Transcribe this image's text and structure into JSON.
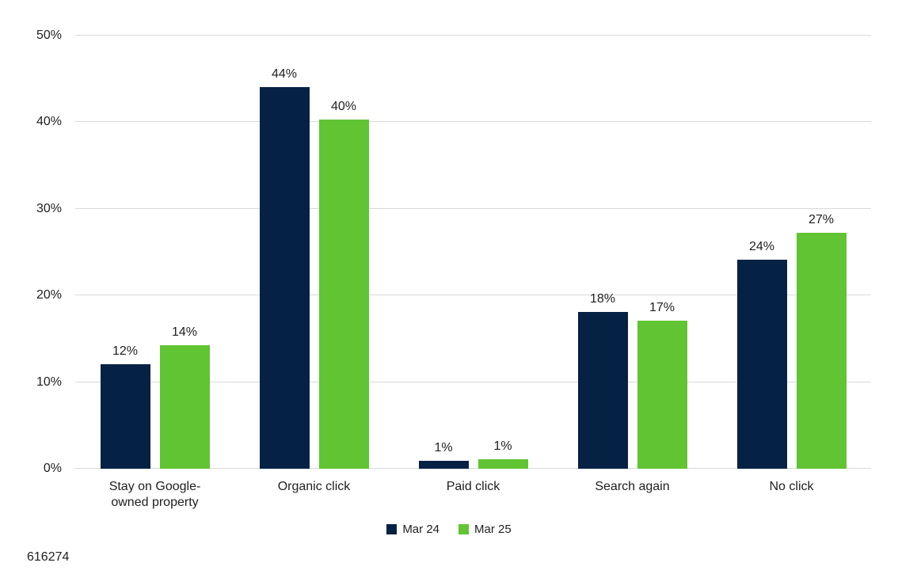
{
  "footer": {
    "note": "616274"
  },
  "chart_data": {
    "type": "bar",
    "categories": [
      "Stay on Google-owned property",
      "Organic click",
      "Paid click",
      "Search again",
      "No click"
    ],
    "category_lines": [
      [
        "Stay on Google-",
        "owned property"
      ],
      [
        "Organic click"
      ],
      [
        "Paid click"
      ],
      [
        "Search again"
      ],
      [
        "No click"
      ]
    ],
    "series": [
      {
        "name": "Mar 24",
        "color": "#052144",
        "values": [
          12,
          44,
          1,
          18,
          24
        ],
        "values_precise": [
          12.1,
          44.1,
          0.9,
          18.1,
          24.1
        ],
        "labels": [
          "12%",
          "44%",
          "1%",
          "18%",
          "24%"
        ]
      },
      {
        "name": "Mar 25",
        "color": "#61C433",
        "values": [
          14,
          40,
          1,
          17,
          27
        ],
        "values_precise": [
          14.3,
          40.3,
          1.1,
          17.1,
          27.2
        ],
        "labels": [
          "14%",
          "40%",
          "1%",
          "17%",
          "27%"
        ]
      }
    ],
    "ylim": [
      0,
      50
    ],
    "yticks": [
      "0%",
      "10%",
      "20%",
      "30%",
      "40%",
      "50%"
    ],
    "ytick_values": [
      0,
      10,
      20,
      30,
      40,
      50
    ],
    "grid": true,
    "legend_position": "bottom",
    "colors": {
      "grid": "#d9d9d9",
      "text": "#1f1f1f",
      "background": "#ffffff"
    }
  }
}
